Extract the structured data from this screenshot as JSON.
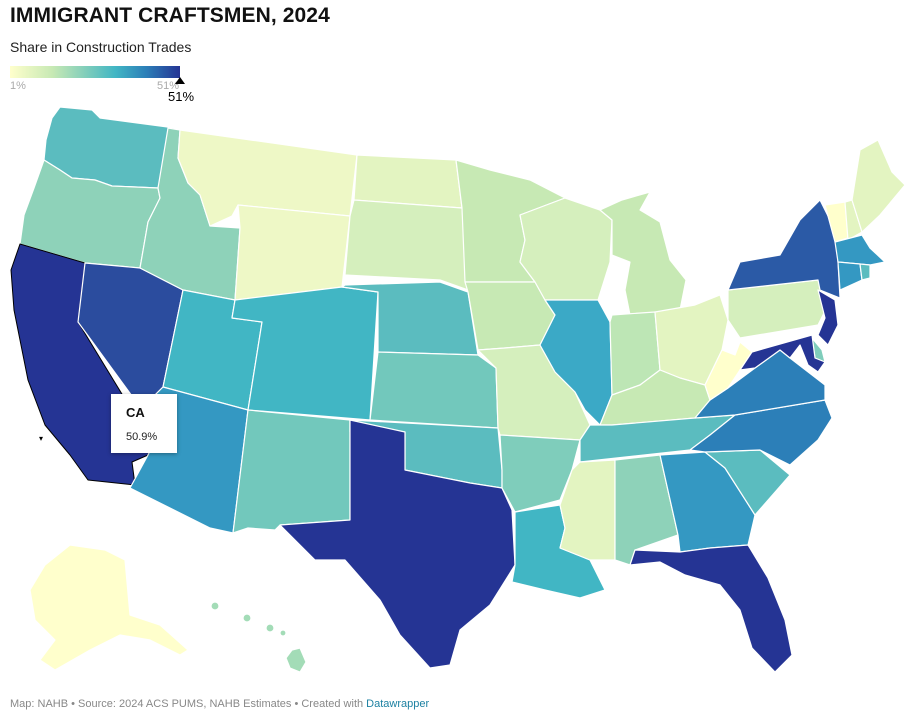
{
  "header": {
    "title": "IMMIGRANT CRAFTSMEN, 2024",
    "subtitle": "Share in Construction Trades"
  },
  "legend": {
    "min_label": "1%",
    "max_label": "51%",
    "marker_label": "51%",
    "colors": [
      "#ffffcc",
      "#c7e9b4",
      "#7fcdbb",
      "#41b6c4",
      "#2c7fb8",
      "#253494"
    ]
  },
  "map": {
    "highlighted_state": "CA",
    "states": {
      "WA": "#5bbcbf",
      "OR": "#8ed2b9",
      "CA": "#253494",
      "NV": "#2b4c9e",
      "ID": "#8ed2b9",
      "MT": "#eef8c6",
      "WY": "#eef8c6",
      "UT": "#41b6c4",
      "AZ": "#3498c2",
      "CO": "#41b6c4",
      "NM": "#72c8bc",
      "ND": "#e3f4c1",
      "SD": "#d5efbd",
      "NE": "#5bbcbf",
      "KS": "#72c8bc",
      "OK": "#5bbcbf",
      "TX": "#253494",
      "MN": "#c7e9b4",
      "IA": "#c7e9b4",
      "MO": "#d5efbd",
      "AR": "#7fcdbb",
      "LA": "#41b6c4",
      "WI": "#d5efbd",
      "IL": "#3ba9c6",
      "MI": "#c7e9b4",
      "IN": "#bde6b5",
      "OH": "#e3f4c1",
      "KY": "#c7e9b4",
      "TN": "#5bbcbf",
      "MS": "#e3f4c1",
      "AL": "#8ed2b9",
      "GA": "#3498c2",
      "FL": "#253494",
      "SC": "#5bbcbf",
      "NC": "#2c7fb8",
      "VA": "#2c7fb8",
      "WV": "#ffffcc",
      "PA": "#d5efbd",
      "NY": "#2b5aa6",
      "VT": "#ffffcc",
      "NH": "#e3f4c1",
      "ME": "#e3f4c1",
      "MA": "#3498c2",
      "CT": "#3498c2",
      "RI": "#5bbcbf",
      "NJ": "#253494",
      "DE": "#7fcdbb",
      "MD": "#253494",
      "AK": "#ffffcc",
      "HI": "#a3dcb7"
    }
  },
  "tooltip": {
    "state": "CA",
    "value": "50.9%"
  },
  "footer": {
    "text": "Map: NAHB • Source: 2024 ACS PUMS, NAHB Estimates • Created with ",
    "link_text": "Datawrapper"
  }
}
